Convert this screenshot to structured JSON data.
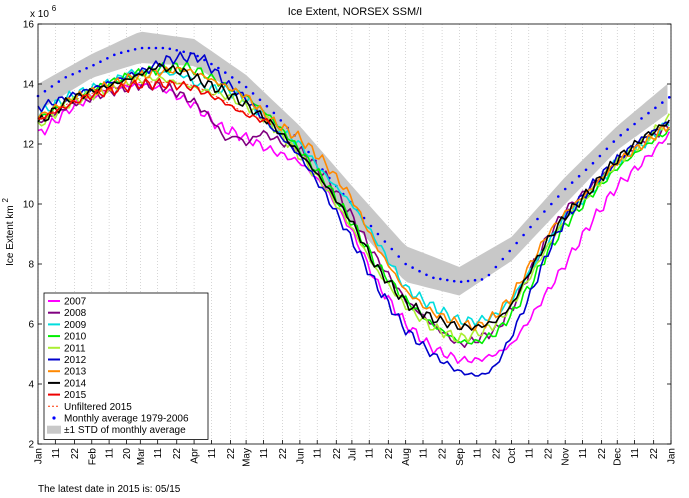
{
  "chart_data": {
    "type": "line",
    "title": "Ice Extent, NORSEX SSM/I",
    "ylabel": "Ice Extent km",
    "ylabel_superscript": "2",
    "y_multiplier": "x 10",
    "y_multiplier_exponent": "6",
    "ylim": [
      2,
      16
    ],
    "yticks": [
      2,
      4,
      6,
      8,
      10,
      12,
      14,
      16
    ],
    "xlim": [
      1,
      366
    ],
    "x_tick_labels": [
      {
        "day": 1,
        "label": "Jan"
      },
      {
        "day": 11,
        "label": "11"
      },
      {
        "day": 22,
        "label": "22"
      },
      {
        "day": 32,
        "label": "Feb"
      },
      {
        "day": 42,
        "label": "11"
      },
      {
        "day": 52,
        "label": "20"
      },
      {
        "day": 60,
        "label": "Mar"
      },
      {
        "day": 70,
        "label": "11"
      },
      {
        "day": 81,
        "label": "22"
      },
      {
        "day": 91,
        "label": "Apr"
      },
      {
        "day": 101,
        "label": "11"
      },
      {
        "day": 112,
        "label": "22"
      },
      {
        "day": 121,
        "label": "May"
      },
      {
        "day": 131,
        "label": "11"
      },
      {
        "day": 142,
        "label": "22"
      },
      {
        "day": 152,
        "label": "Jun"
      },
      {
        "day": 162,
        "label": "11"
      },
      {
        "day": 173,
        "label": "22"
      },
      {
        "day": 182,
        "label": "Jul"
      },
      {
        "day": 192,
        "label": "11"
      },
      {
        "day": 203,
        "label": "22"
      },
      {
        "day": 213,
        "label": "Aug"
      },
      {
        "day": 223,
        "label": "11"
      },
      {
        "day": 234,
        "label": "22"
      },
      {
        "day": 244,
        "label": "Sep"
      },
      {
        "day": 254,
        "label": "11"
      },
      {
        "day": 265,
        "label": "22"
      },
      {
        "day": 274,
        "label": "Oct"
      },
      {
        "day": 284,
        "label": "11"
      },
      {
        "day": 295,
        "label": "22"
      },
      {
        "day": 305,
        "label": "Nov"
      },
      {
        "day": 315,
        "label": "11"
      },
      {
        "day": 326,
        "label": "22"
      },
      {
        "day": 335,
        "label": "Dec"
      },
      {
        "day": 345,
        "label": "11"
      },
      {
        "day": 356,
        "label": "22"
      },
      {
        "day": 366,
        "label": "Jan"
      }
    ],
    "grid": "vertical dotted lines",
    "legend_position": "lower-left",
    "std_band": {
      "name": "±1 STD of monthly average",
      "color": "#c8c8c8",
      "x": [
        1,
        32,
        60,
        91,
        121,
        152,
        182,
        213,
        244,
        274,
        305,
        335,
        366
      ],
      "upper": [
        14.0,
        15.0,
        15.75,
        15.5,
        14.3,
        12.6,
        10.6,
        8.6,
        7.9,
        8.9,
        10.9,
        12.6,
        14.1
      ],
      "lower": [
        13.1,
        14.2,
        14.7,
        14.6,
        13.5,
        11.7,
        9.4,
        7.4,
        6.95,
        8.1,
        10.0,
        11.8,
        13.1
      ]
    },
    "monthly_average": {
      "name": "Monthly average 1979-2006",
      "color": "#0000ff",
      "x": [
        1,
        16,
        32,
        46,
        60,
        75,
        91,
        106,
        121,
        136,
        152,
        167,
        182,
        197,
        213,
        228,
        244,
        259,
        274,
        289,
        305,
        320,
        335,
        350,
        366
      ],
      "y": [
        13.6,
        14.2,
        14.6,
        15.0,
        15.2,
        15.2,
        15.0,
        14.5,
        13.9,
        13.1,
        12.1,
        11.0,
        10.0,
        9.0,
        8.0,
        7.55,
        7.4,
        7.5,
        8.5,
        9.5,
        10.5,
        11.3,
        12.2,
        12.9,
        13.6
      ]
    },
    "series": [
      {
        "name": "2007",
        "color": "#ff00ff",
        "x": [
          1,
          20,
          40,
          60,
          75,
          91,
          105,
          121,
          135,
          152,
          166,
          182,
          196,
          213,
          228,
          244,
          255,
          265,
          274,
          285,
          295,
          305,
          320,
          335,
          350,
          366
        ],
        "y": [
          12.3,
          13.2,
          13.8,
          14.0,
          13.8,
          13.3,
          12.6,
          12.2,
          11.8,
          11.4,
          10.6,
          9.1,
          7.4,
          6.0,
          5.2,
          4.8,
          4.8,
          5.0,
          5.3,
          6.2,
          7.1,
          8.0,
          9.4,
          10.6,
          11.4,
          12.4
        ]
      },
      {
        "name": "2008",
        "color": "#800080",
        "x": [
          1,
          20,
          40,
          60,
          75,
          91,
          100,
          110,
          115,
          121,
          130,
          140,
          152,
          166,
          182,
          196,
          213,
          228,
          244,
          255,
          265,
          274,
          285,
          295,
          305,
          320,
          335,
          350,
          366
        ],
        "y": [
          12.7,
          13.3,
          13.7,
          14.0,
          13.9,
          13.4,
          12.9,
          12.1,
          12.3,
          12.0,
          12.4,
          12.1,
          11.8,
          11.0,
          9.6,
          8.2,
          6.8,
          6.0,
          5.3,
          5.5,
          5.8,
          6.5,
          7.8,
          8.9,
          9.8,
          10.6,
          11.4,
          12.1,
          12.6
        ]
      },
      {
        "name": "2009",
        "color": "#00dddd",
        "x": [
          1,
          20,
          40,
          55,
          70,
          85,
          95,
          110,
          121,
          135,
          152,
          166,
          182,
          196,
          213,
          228,
          244,
          255,
          265,
          274,
          285,
          295,
          305,
          320,
          335,
          350,
          366
        ],
        "y": [
          13.0,
          13.6,
          14.0,
          14.4,
          14.4,
          14.3,
          13.9,
          13.8,
          13.5,
          12.7,
          12.0,
          11.0,
          10.0,
          8.8,
          7.2,
          6.6,
          6.1,
          6.1,
          6.3,
          6.8,
          7.8,
          8.7,
          9.6,
          10.4,
          11.4,
          12.0,
          12.8
        ]
      },
      {
        "name": "2010",
        "color": "#00ee00",
        "x": [
          1,
          20,
          40,
          55,
          70,
          85,
          95,
          110,
          121,
          135,
          152,
          166,
          182,
          196,
          213,
          228,
          244,
          255,
          265,
          274,
          285,
          295,
          305,
          320,
          335,
          350,
          366
        ],
        "y": [
          12.8,
          13.5,
          14.0,
          14.3,
          14.5,
          14.6,
          14.4,
          13.9,
          13.6,
          12.9,
          11.8,
          10.8,
          9.4,
          8.0,
          6.8,
          6.0,
          5.4,
          5.4,
          5.7,
          6.3,
          7.3,
          8.4,
          9.3,
          10.3,
          11.2,
          11.9,
          12.5
        ]
      },
      {
        "name": "2011",
        "color": "#aaee33",
        "x": [
          1,
          20,
          40,
          55,
          70,
          85,
          95,
          110,
          121,
          135,
          152,
          166,
          182,
          196,
          213,
          228,
          244,
          255,
          265,
          274,
          285,
          295,
          305,
          320,
          335,
          350,
          366
        ],
        "y": [
          12.6,
          13.4,
          13.8,
          14.1,
          14.2,
          14.0,
          13.8,
          13.6,
          13.3,
          12.7,
          11.6,
          10.6,
          9.2,
          7.8,
          6.6,
          5.9,
          5.5,
          5.7,
          6.0,
          6.6,
          7.6,
          8.6,
          9.5,
          10.4,
          11.4,
          12.1,
          12.9
        ]
      },
      {
        "name": "2012",
        "color": "#0000cc",
        "x": [
          1,
          20,
          40,
          55,
          65,
          75,
          85,
          95,
          110,
          121,
          135,
          152,
          166,
          182,
          196,
          213,
          228,
          244,
          252,
          258,
          265,
          274,
          285,
          295,
          305,
          320,
          335,
          350,
          366
        ],
        "y": [
          13.2,
          13.6,
          14.0,
          14.3,
          14.5,
          14.8,
          14.9,
          14.9,
          14.0,
          13.5,
          12.6,
          11.6,
          10.4,
          8.8,
          7.3,
          5.8,
          5.0,
          4.4,
          4.3,
          4.3,
          4.6,
          5.6,
          7.0,
          8.4,
          9.5,
          10.6,
          11.5,
          12.2,
          12.8
        ]
      },
      {
        "name": "2013",
        "color": "#ff8800",
        "x": [
          1,
          20,
          40,
          55,
          70,
          85,
          95,
          110,
          121,
          135,
          152,
          166,
          182,
          196,
          213,
          228,
          244,
          255,
          265,
          274,
          285,
          295,
          305,
          320,
          335,
          350,
          366
        ],
        "y": [
          12.9,
          13.5,
          13.9,
          14.2,
          14.4,
          14.5,
          14.3,
          13.9,
          13.6,
          12.8,
          12.2,
          11.4,
          10.2,
          8.6,
          7.1,
          6.4,
          6.0,
          5.9,
          6.3,
          6.9,
          8.0,
          9.0,
          9.7,
          10.5,
          11.4,
          12.0,
          12.7
        ]
      },
      {
        "name": "2014",
        "color": "#000000",
        "x": [
          1,
          20,
          40,
          55,
          70,
          85,
          95,
          110,
          121,
          135,
          152,
          166,
          182,
          196,
          213,
          228,
          244,
          255,
          265,
          274,
          285,
          295,
          305,
          320,
          335,
          350,
          366
        ],
        "y": [
          12.7,
          13.5,
          13.9,
          14.2,
          14.6,
          14.4,
          14.1,
          13.7,
          13.3,
          12.7,
          11.7,
          10.7,
          9.4,
          7.9,
          6.7,
          6.2,
          5.9,
          5.9,
          6.1,
          6.6,
          7.8,
          8.8,
          9.6,
          10.5,
          11.5,
          12.2,
          12.8
        ]
      },
      {
        "name": "2015",
        "color": "#ee0000",
        "x": [
          1,
          15,
          30,
          45,
          60,
          75,
          90,
          105,
          120,
          135
        ],
        "y": [
          12.8,
          13.2,
          13.6,
          13.8,
          14.0,
          14.0,
          13.9,
          13.5,
          13.0,
          12.7
        ]
      }
    ],
    "unfiltered": {
      "name": "Unfiltered 2015",
      "color": "#ff3300",
      "x": [
        1,
        15,
        30,
        45,
        60,
        75,
        90,
        105,
        120,
        135
      ],
      "y": [
        12.8,
        13.25,
        13.65,
        13.85,
        14.05,
        14.05,
        13.95,
        13.55,
        13.05,
        12.75
      ]
    }
  },
  "footer": {
    "text": "The latest date in 2015 is: 05/15"
  }
}
